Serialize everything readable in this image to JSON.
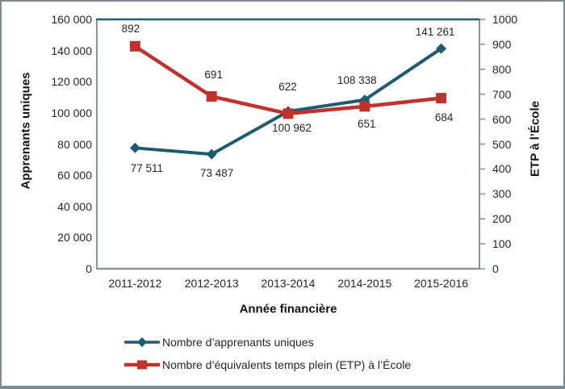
{
  "chart_data": {
    "type": "line",
    "title": "",
    "xlabel": "Année financière",
    "ylabel_left": "Apprenants uniques",
    "ylabel_right": "ETP à l’École",
    "x": [
      "2011-2012",
      "2012-2013",
      "2013-2014",
      "2014-2015",
      "2015-2016"
    ],
    "series": [
      {
        "name": "Nombre d’apprenants uniques",
        "axis": "left",
        "color": "#1d5b6e",
        "marker": "diamond",
        "values": [
          77511,
          73487,
          100962,
          108338,
          141261
        ],
        "labels": [
          "77 511",
          "73 487",
          "100 962",
          "108 338",
          "141 261"
        ]
      },
      {
        "name": "Nombre d’équivalents temps plein (ETP) à l’École",
        "axis": "right",
        "color": "#c0332c",
        "marker": "square",
        "values": [
          892,
          691,
          622,
          651,
          684
        ],
        "labels": [
          "892",
          "691",
          "622",
          "651",
          "684"
        ]
      }
    ],
    "ylim_left": [
      0,
      160000
    ],
    "ylim_right": [
      0,
      1000
    ],
    "left_tick_labels": [
      "160 000",
      "140 000",
      "120 000",
      "100 000",
      "80 000",
      "60 000",
      "40 000",
      "20 000",
      "0"
    ],
    "right_tick_labels": [
      "1000",
      "900",
      "800",
      "700",
      "600",
      "500",
      "400",
      "300",
      "200",
      "100",
      "0"
    ],
    "grid": false,
    "legend_position": "bottom-left",
    "colors": {
      "axis_line": "#8a949a",
      "plot_top_border": "#27606f",
      "outer_border": "#7d8b93",
      "text": "#262626"
    }
  }
}
